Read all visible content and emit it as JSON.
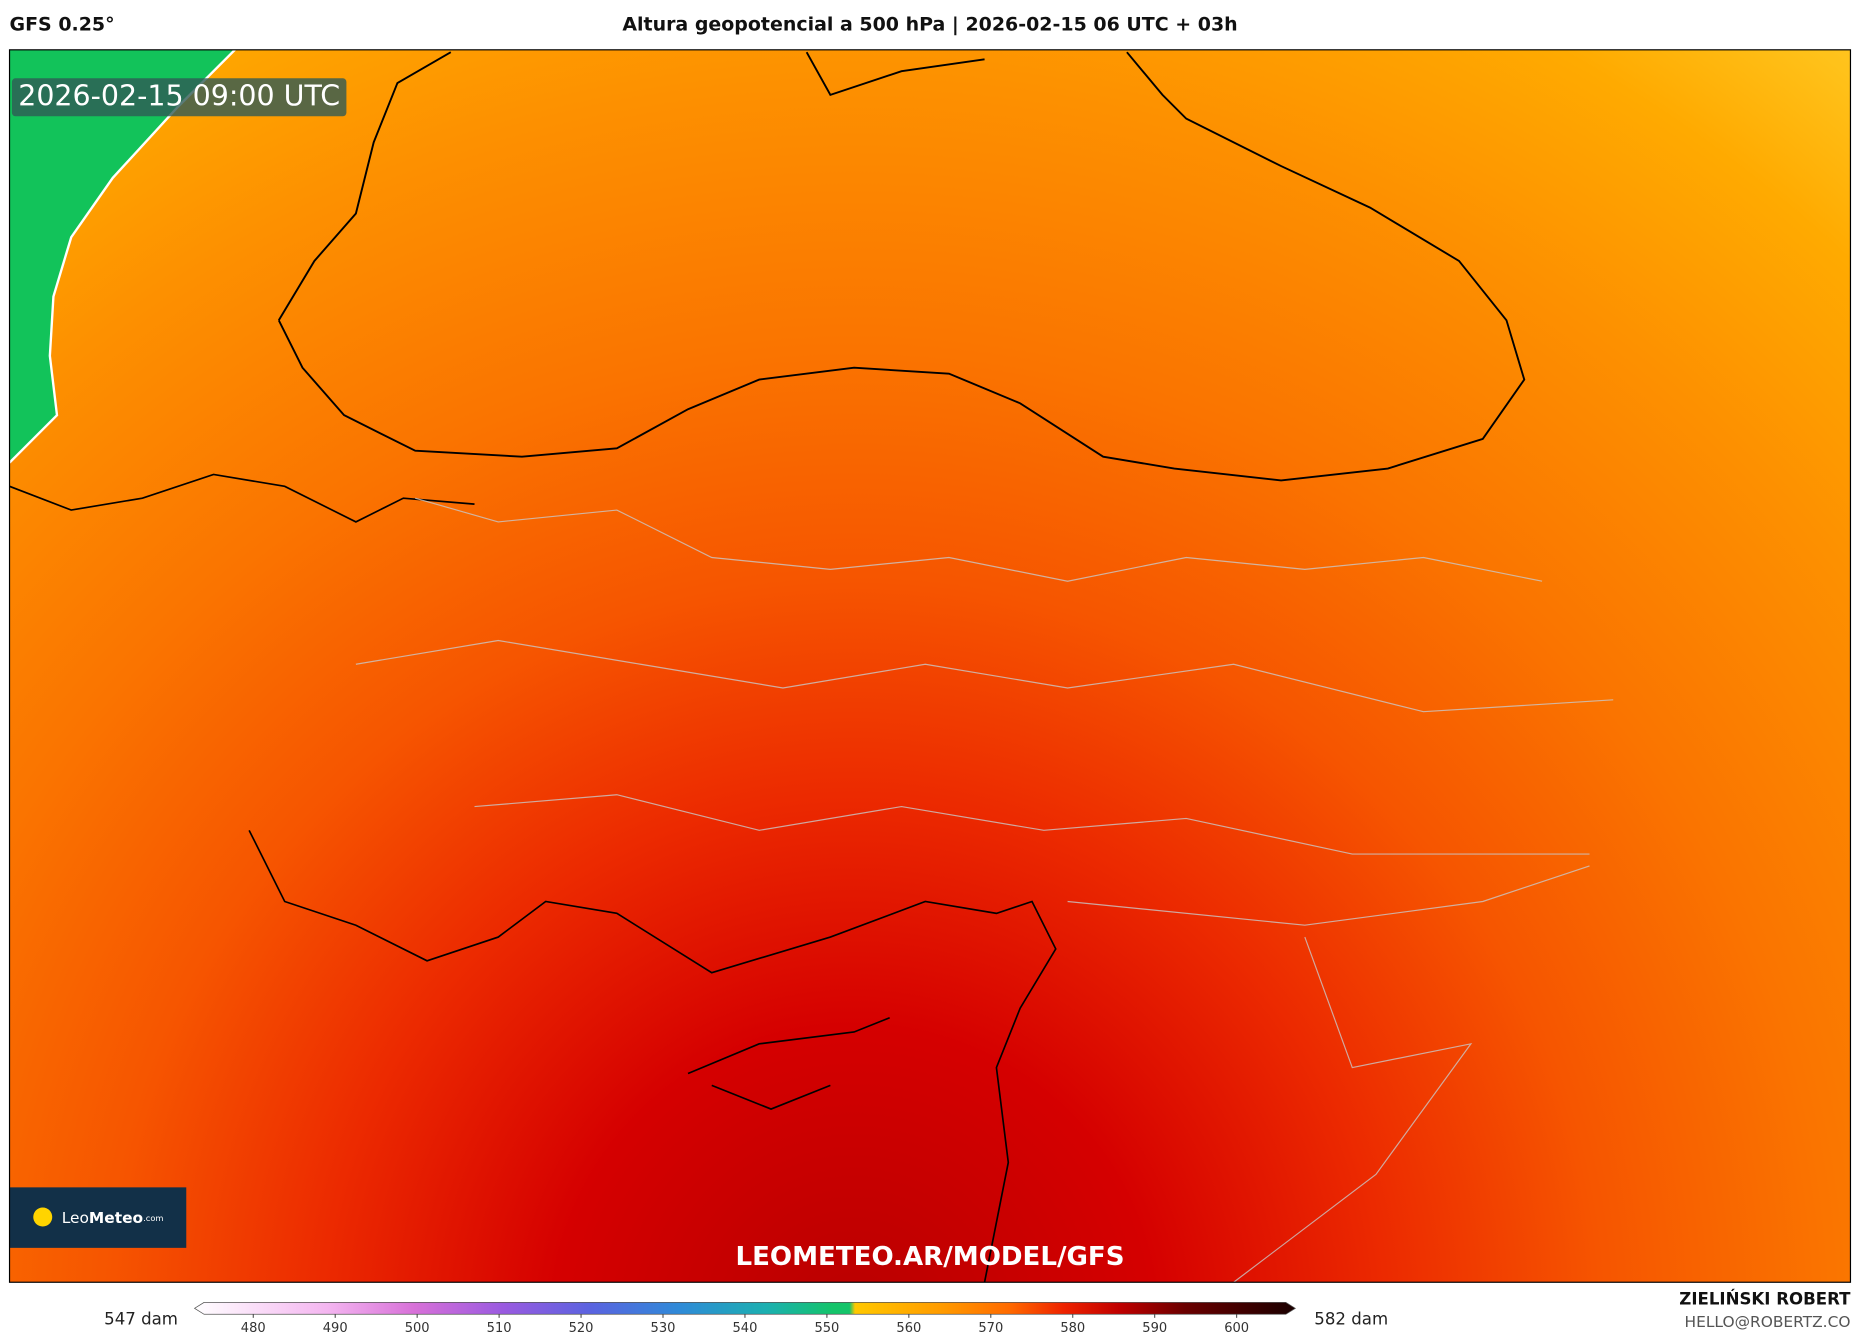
{
  "header": {
    "model": "GFS 0.25°",
    "title": "Altura geopotencial a 500 hPa | 2026-02-15 06 UTC + 03h"
  },
  "map": {
    "valid_time": "2026-02-15 09:00 UTC",
    "logo_light": "Leo",
    "logo_bold": "Meteo",
    "logo_suffix": ".com",
    "watermark": "LEOMETEO.AR/MODEL/GFS"
  },
  "colorbar": {
    "min_label": "547 dam",
    "max_label": "582 dam",
    "range": [
      474,
      606
    ],
    "ticks": [
      480,
      490,
      500,
      510,
      520,
      530,
      540,
      550,
      560,
      570,
      580,
      590,
      600
    ]
  },
  "footer": {
    "author": "ZIELIŃSKI ROBERT",
    "email": "HELLO@ROBERTZ.CO"
  }
}
